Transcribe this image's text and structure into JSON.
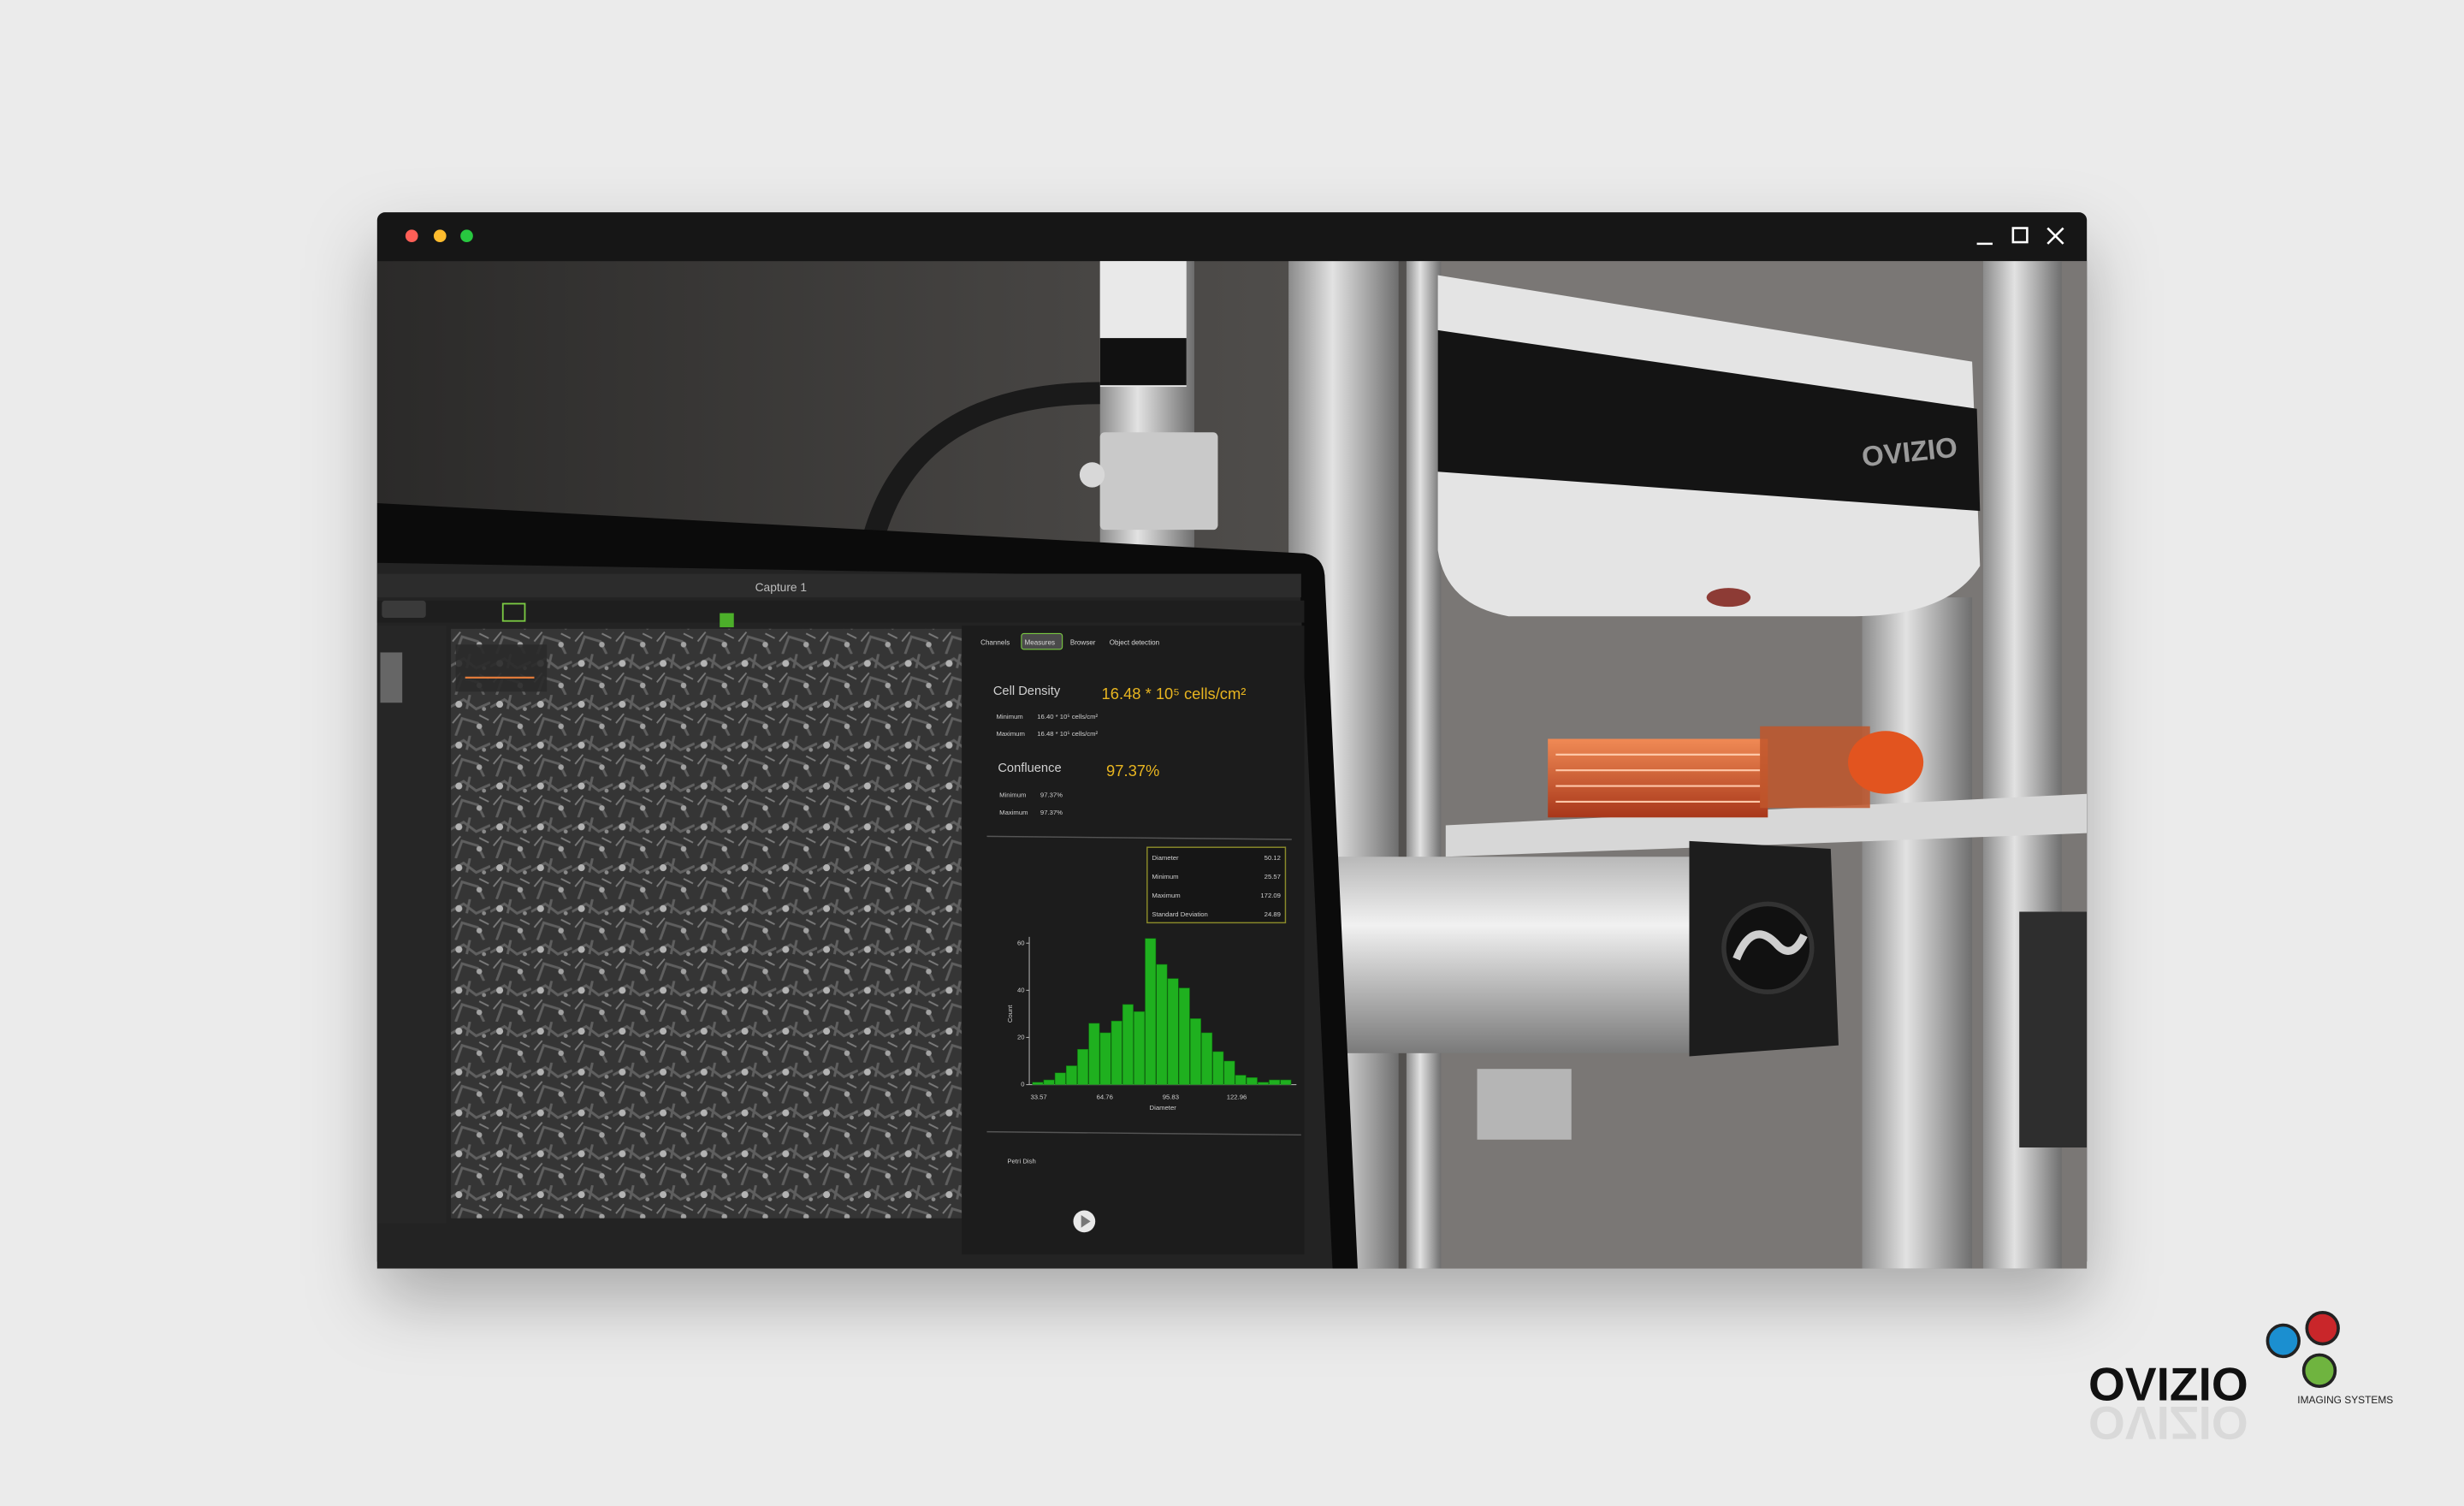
{
  "window": {
    "title": "Capture 1",
    "tabs": [
      "Channels",
      "Measures",
      "Browser",
      "Object detection"
    ]
  },
  "measures": {
    "cell_density": {
      "label": "Cell Density",
      "value": "16.48 * 10⁵ cells/cm²",
      "minimum_label": "Minimum",
      "minimum": "16.40 * 10⁵ cells/cm²",
      "maximum_label": "Maximum",
      "maximum": "16.48 * 10⁵ cells/cm²"
    },
    "confluence": {
      "label": "Confluence",
      "value": "97.37%",
      "minimum_label": "Minimum",
      "minimum": "97.37%",
      "maximum_label": "Maximum",
      "maximum": "97.37%"
    }
  },
  "histogram": {
    "stats": [
      {
        "label": "Diameter",
        "value": "50.12"
      },
      {
        "label": "Minimum",
        "value": "25.57"
      },
      {
        "label": "Maximum",
        "value": "172.09"
      },
      {
        "label": "Standard Deviation",
        "value": "24.89"
      }
    ],
    "y_label": "Count",
    "x_label": "Diameter",
    "ylim": [
      0,
      60
    ],
    "yticks": [
      0,
      20,
      40,
      60
    ],
    "xticks": [
      "33.57",
      "64.76",
      "95.83",
      "122.96"
    ],
    "counts": [
      1,
      2,
      5,
      8,
      15,
      26,
      22,
      27,
      34,
      31,
      62,
      51,
      45,
      41,
      28,
      22,
      14,
      10,
      4,
      3,
      1,
      2,
      2
    ]
  },
  "footer": "Petri Dish",
  "device_brand": "OVIZIO",
  "logo": {
    "name": "OVIZIO",
    "tagline": "IMAGING SYSTEMS"
  }
}
